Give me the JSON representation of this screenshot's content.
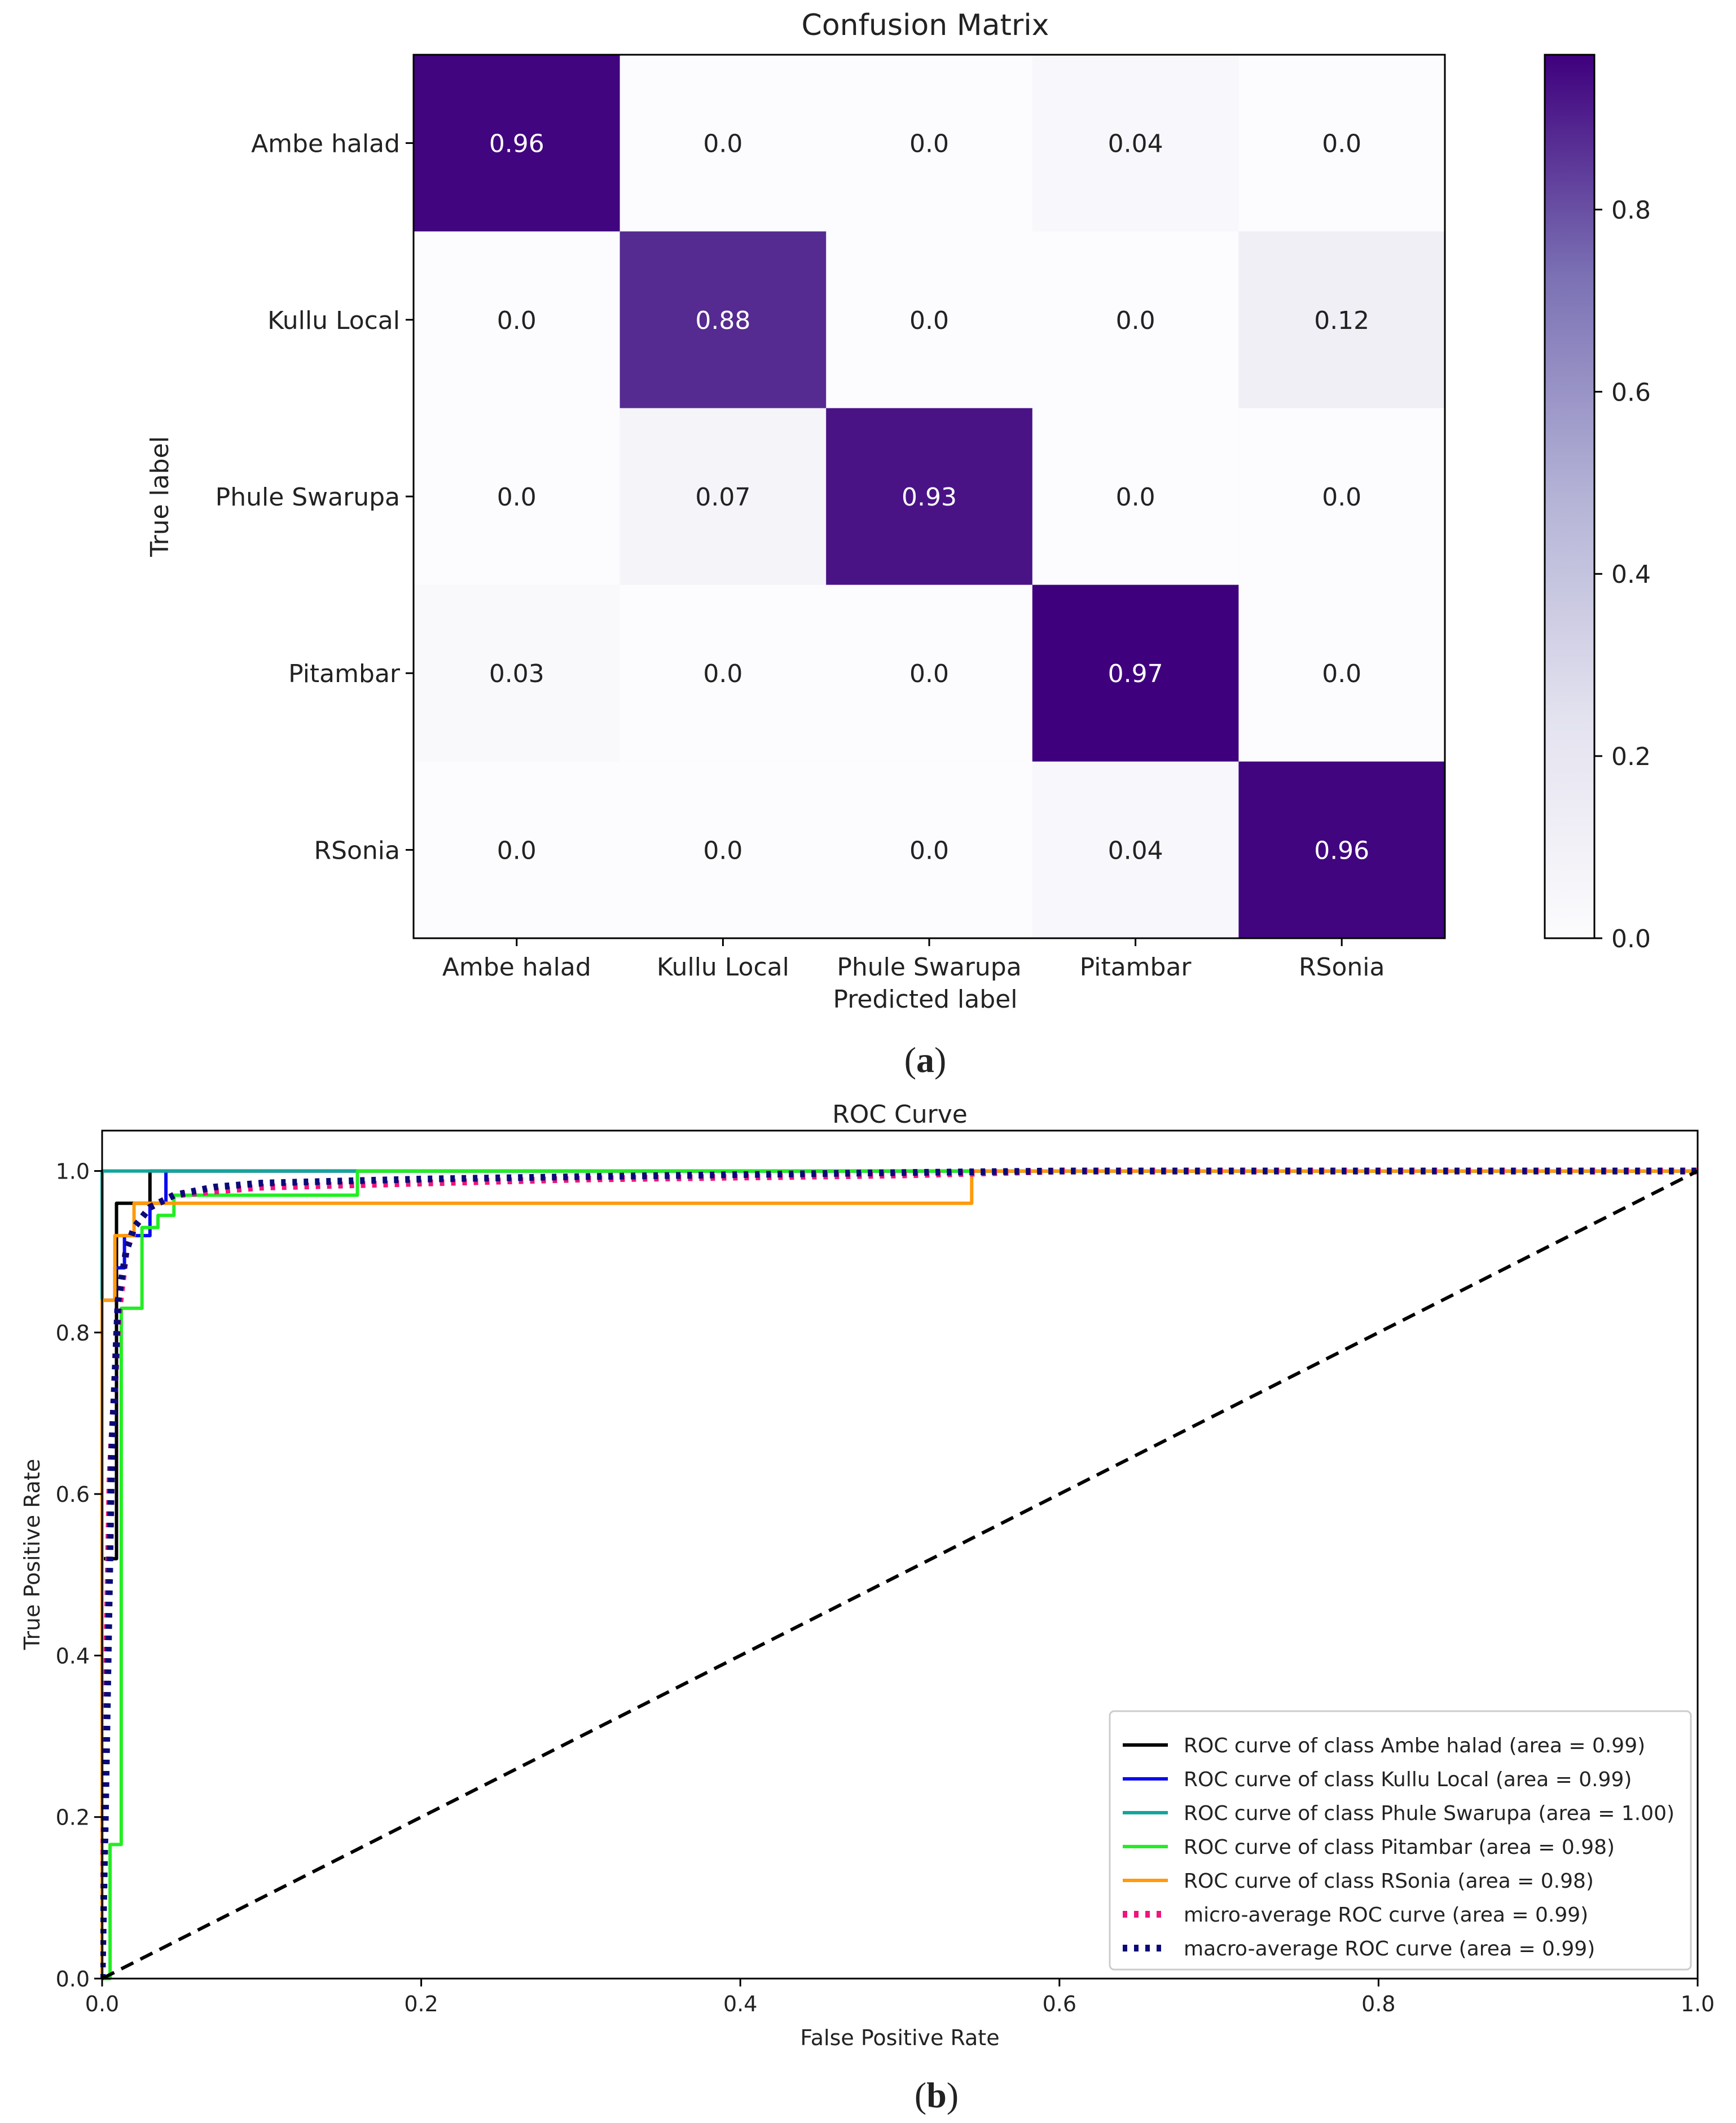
{
  "panel_a_label": "a",
  "panel_b_label": "b",
  "chart_data": [
    {
      "type": "heatmap",
      "title": "Confusion Matrix",
      "xlabel": "Predicted label",
      "ylabel": "True label",
      "x_categories": [
        "Ambe halad",
        "Kullu Local",
        "Phule Swarupa",
        "Pitambar",
        "RSonia"
      ],
      "y_categories": [
        "Ambe halad",
        "Kullu Local",
        "Phule Swarupa",
        "Pitambar",
        "RSonia"
      ],
      "values": [
        [
          0.96,
          0.0,
          0.0,
          0.04,
          0.0
        ],
        [
          0.0,
          0.88,
          0.0,
          0.0,
          0.12
        ],
        [
          0.0,
          0.07,
          0.93,
          0.0,
          0.0
        ],
        [
          0.03,
          0.0,
          0.0,
          0.97,
          0.0
        ],
        [
          0.0,
          0.0,
          0.0,
          0.04,
          0.96
        ]
      ],
      "cell_labels": [
        [
          "0.96",
          "0.0",
          "0.0",
          "0.04",
          "0.0"
        ],
        [
          "0.0",
          "0.88",
          "0.0",
          "0.0",
          "0.12"
        ],
        [
          "0.0",
          "0.07",
          "0.93",
          "0.0",
          "0.0"
        ],
        [
          "0.03",
          "0.0",
          "0.0",
          "0.97",
          "0.0"
        ],
        [
          "0.0",
          "0.0",
          "0.0",
          "0.04",
          "0.96"
        ]
      ],
      "colormap": "Purples",
      "colorbar": {
        "range": [
          0,
          0.97
        ],
        "ticks": [
          0.0,
          0.2,
          0.4,
          0.6,
          0.8
        ],
        "tick_labels": [
          "0.0",
          "0.2",
          "0.4",
          "0.6",
          "0.8"
        ]
      }
    },
    {
      "type": "line",
      "title": "ROC Curve",
      "xlabel": "False Positive Rate",
      "ylabel": "True Positive Rate",
      "xlim": [
        0,
        1
      ],
      "ylim": [
        0,
        1.05
      ],
      "xticks": [
        0.0,
        0.2,
        0.4,
        0.6,
        0.8,
        1.0
      ],
      "xtick_labels": [
        "0.0",
        "0.2",
        "0.4",
        "0.6",
        "0.8",
        "1.0"
      ],
      "yticks": [
        0.0,
        0.2,
        0.4,
        0.6,
        0.8,
        1.0
      ],
      "ytick_labels": [
        "0.0",
        "0.2",
        "0.4",
        "0.6",
        "0.8",
        "1.0"
      ],
      "legend_position": "lower-right",
      "series": [
        {
          "name": "ROC curve of class Ambe halad (area = 0.99)",
          "color": "#000000",
          "style": "solid",
          "x": [
            0,
            0,
            0.009,
            0.009,
            0.03,
            0.03,
            1.0
          ],
          "y": [
            0,
            0.52,
            0.52,
            0.96,
            0.96,
            1.0,
            1.0
          ]
        },
        {
          "name": "ROC curve of class Kullu Local (area = 0.99)",
          "color": "#0a0af0",
          "style": "solid",
          "x": [
            0,
            0,
            0.008,
            0.008,
            0.014,
            0.014,
            0.03,
            0.03,
            0.04,
            0.04,
            1.0
          ],
          "y": [
            0,
            0.84,
            0.84,
            0.88,
            0.88,
            0.92,
            0.92,
            0.96,
            0.96,
            1.0,
            1.0
          ]
        },
        {
          "name": "ROC curve of class Phule Swarupa (area = 1.00)",
          "color": "#13a59a",
          "style": "solid",
          "x": [
            0,
            0,
            1.0
          ],
          "y": [
            0,
            1.0,
            1.0
          ]
        },
        {
          "name": "ROC curve of class Pitambar (area = 0.98)",
          "color": "#22ee22",
          "style": "solid",
          "x": [
            0,
            0.005,
            0.005,
            0.012,
            0.012,
            0.025,
            0.025,
            0.035,
            0.035,
            0.045,
            0.045,
            0.16,
            0.16,
            1.0
          ],
          "y": [
            0,
            0,
            0.166,
            0.166,
            0.83,
            0.83,
            0.93,
            0.93,
            0.945,
            0.945,
            0.97,
            0.97,
            1.0,
            1.0
          ]
        },
        {
          "name": "ROC curve of class RSonia (area = 0.98)",
          "color": "#ff9a0a",
          "style": "solid",
          "x": [
            0,
            0,
            0.008,
            0.008,
            0.02,
            0.02,
            0.04,
            0.04,
            0.545,
            0.545,
            1.0
          ],
          "y": [
            0,
            0.84,
            0.84,
            0.92,
            0.92,
            0.96,
            0.96,
            0.96,
            0.96,
            1.0,
            1.0
          ]
        },
        {
          "name": "micro-average ROC curve (area = 0.99)",
          "color": "#f0147d",
          "style": "dotted",
          "x": [
            0,
            0.002,
            0.005,
            0.01,
            0.015,
            0.02,
            0.03,
            0.045,
            0.07,
            0.1,
            0.2,
            0.3,
            0.5,
            0.6,
            1.0
          ],
          "y": [
            0,
            0.3,
            0.62,
            0.82,
            0.9,
            0.93,
            0.955,
            0.97,
            0.975,
            0.98,
            0.985,
            0.99,
            0.995,
            1.0,
            1.0
          ]
        },
        {
          "name": "macro-average ROC curve (area = 0.99)",
          "color": "#0a0a78",
          "style": "dotted",
          "x": [
            0,
            0.002,
            0.006,
            0.01,
            0.015,
            0.02,
            0.03,
            0.045,
            0.07,
            0.1,
            0.2,
            0.3,
            0.5,
            0.6,
            1.0
          ],
          "y": [
            0,
            0.2,
            0.65,
            0.84,
            0.9,
            0.93,
            0.955,
            0.97,
            0.98,
            0.985,
            0.99,
            0.993,
            0.998,
            1.0,
            1.0
          ]
        },
        {
          "name": "chance",
          "color": "#000000",
          "style": "dashed",
          "in_legend": false,
          "x": [
            0,
            1.0
          ],
          "y": [
            0,
            1.0
          ]
        }
      ]
    }
  ]
}
